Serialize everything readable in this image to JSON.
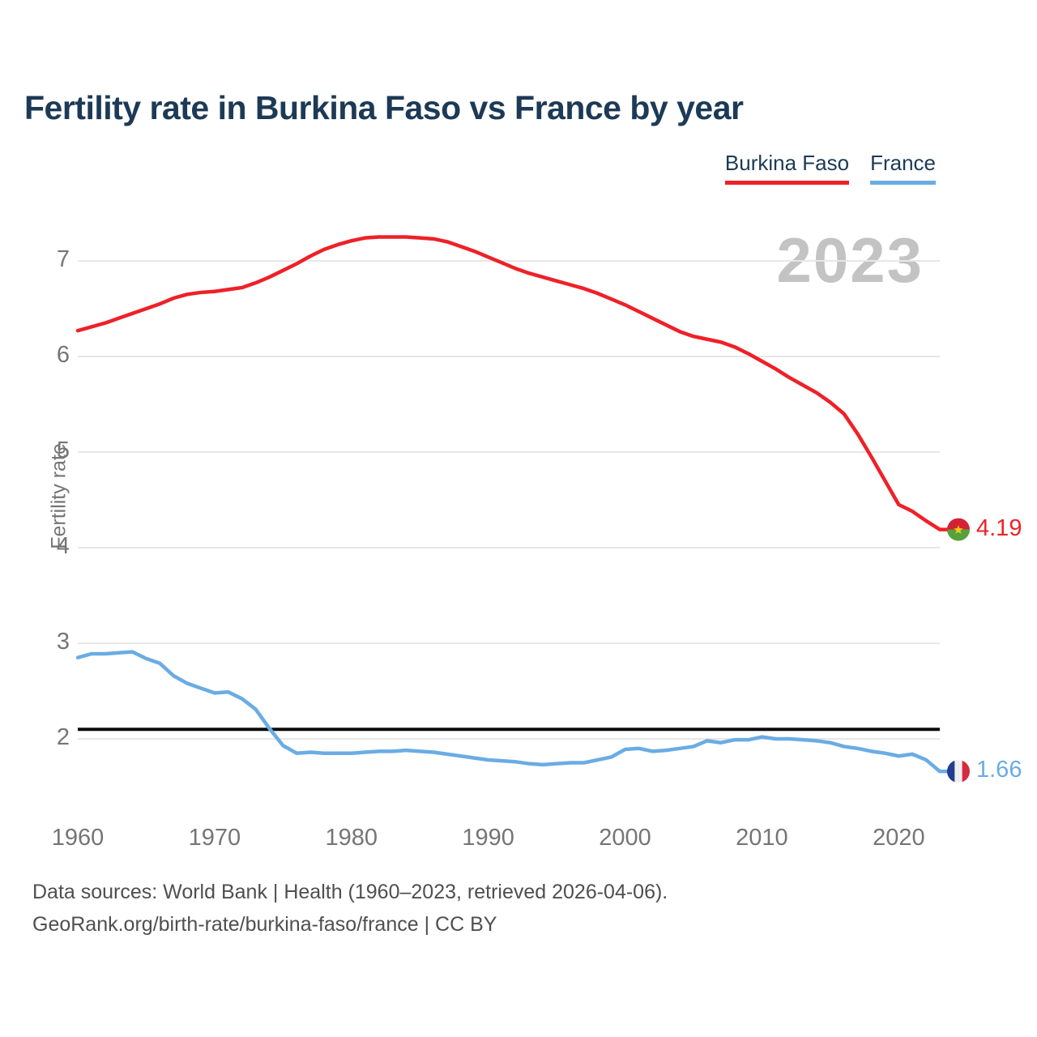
{
  "title": "Fertility rate in Burkina Faso vs France by year",
  "watermark": "2023",
  "legend": {
    "items": [
      {
        "label": "Burkina Faso",
        "color": "#ee2128"
      },
      {
        "label": "France",
        "color": "#6aace4"
      }
    ]
  },
  "y_axis": {
    "label": "Fertility rate",
    "ticks": [
      7,
      6,
      5,
      4,
      3,
      2
    ]
  },
  "x_axis": {
    "ticks": [
      1960,
      1970,
      1980,
      1990,
      2000,
      2010,
      2020
    ]
  },
  "reference_line": {
    "value": 2.1,
    "color": "#0a0a0a"
  },
  "end_labels": {
    "burkina_faso": "4.19",
    "france": "1.66"
  },
  "footer": {
    "line1": "Data sources: World Bank | Health (1960–2023, retrieved 2026-04-06).",
    "line2": "GeoRank.org/birth-rate/burkina-faso/france | CC BY"
  },
  "colors": {
    "burkina_faso_line": "#ee2128",
    "france_line": "#6aace4",
    "title_text": "#1c3a56",
    "watermark_text": "#c3c3c3",
    "gridline": "#e7e7e7",
    "axis_text": "#757575",
    "flag_bf": {
      "top": "#d32232",
      "bottom": "#55a13c",
      "star": "#f4c718"
    },
    "flag_fr": {
      "left": "#213d8f",
      "middle": "#efefef",
      "right": "#d52b3f"
    }
  },
  "chart_data": {
    "type": "line",
    "title": "Fertility rate in Burkina Faso vs France by year",
    "xlabel": "",
    "ylabel": "Fertility rate",
    "ylim": [
      1.4,
      7.6
    ],
    "xlim": [
      1960,
      2023
    ],
    "grid": "horizontal",
    "legend_position": "top-right",
    "annotations": [
      "2023 watermark",
      "replacement level line at 2.1",
      "end labels 4.19 and 1.66"
    ],
    "x": [
      1960,
      1961,
      1962,
      1963,
      1964,
      1965,
      1966,
      1967,
      1968,
      1969,
      1970,
      1971,
      1972,
      1973,
      1974,
      1975,
      1976,
      1977,
      1978,
      1979,
      1980,
      1981,
      1982,
      1983,
      1984,
      1985,
      1986,
      1987,
      1988,
      1989,
      1990,
      1991,
      1992,
      1993,
      1994,
      1995,
      1996,
      1997,
      1998,
      1999,
      2000,
      2001,
      2002,
      2003,
      2004,
      2005,
      2006,
      2007,
      2008,
      2009,
      2010,
      2011,
      2012,
      2013,
      2014,
      2015,
      2016,
      2017,
      2018,
      2019,
      2020,
      2021,
      2022,
      2023
    ],
    "series": [
      {
        "name": "Burkina Faso",
        "color": "#ee2128",
        "values": [
          6.27,
          6.31,
          6.35,
          6.4,
          6.45,
          6.5,
          6.55,
          6.61,
          6.65,
          6.67,
          6.68,
          6.7,
          6.72,
          6.77,
          6.83,
          6.9,
          6.97,
          7.05,
          7.12,
          7.17,
          7.21,
          7.24,
          7.25,
          7.25,
          7.25,
          7.24,
          7.23,
          7.2,
          7.15,
          7.1,
          7.04,
          6.98,
          6.92,
          6.87,
          6.83,
          6.79,
          6.75,
          6.71,
          6.66,
          6.6,
          6.54,
          6.47,
          6.4,
          6.33,
          6.26,
          6.21,
          6.18,
          6.15,
          6.1,
          6.03,
          5.95,
          5.87,
          5.78,
          5.7,
          5.62,
          5.52,
          5.4,
          5.19,
          4.95,
          4.7,
          4.45,
          4.38,
          4.28,
          4.19
        ]
      },
      {
        "name": "France",
        "color": "#6aace4",
        "values": [
          2.85,
          2.89,
          2.89,
          2.9,
          2.91,
          2.84,
          2.79,
          2.66,
          2.58,
          2.53,
          2.48,
          2.49,
          2.42,
          2.31,
          2.11,
          1.93,
          1.85,
          1.86,
          1.85,
          1.85,
          1.85,
          1.86,
          1.87,
          1.87,
          1.88,
          1.87,
          1.86,
          1.84,
          1.82,
          1.8,
          1.78,
          1.77,
          1.76,
          1.74,
          1.73,
          1.74,
          1.75,
          1.75,
          1.78,
          1.81,
          1.89,
          1.9,
          1.87,
          1.88,
          1.9,
          1.92,
          1.98,
          1.96,
          1.99,
          1.99,
          2.02,
          2.0,
          2.0,
          1.99,
          1.98,
          1.96,
          1.92,
          1.9,
          1.87,
          1.85,
          1.82,
          1.84,
          1.78,
          1.66
        ]
      }
    ]
  }
}
